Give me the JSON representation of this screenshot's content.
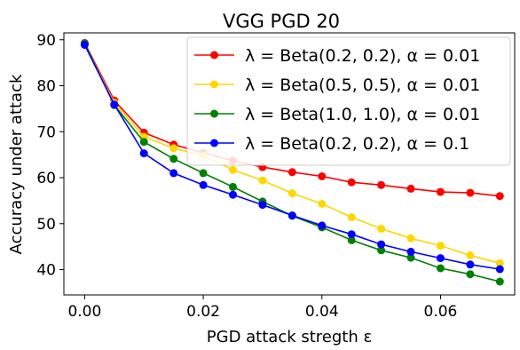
{
  "chart_data": {
    "type": "line",
    "title": "VGG PGD 20",
    "xlabel": "PGD attack stregth ε",
    "ylabel": "Accuracy under attack",
    "xlim": [
      -0.0035,
      0.0725
    ],
    "ylim": [
      34.5,
      91.5
    ],
    "xticks": [
      0.0,
      0.02,
      0.04,
      0.06
    ],
    "xtick_labels": [
      "0.00",
      "0.02",
      "0.04",
      "0.06"
    ],
    "yticks": [
      40,
      50,
      60,
      70,
      80,
      90
    ],
    "ytick_labels": [
      "40",
      "50",
      "60",
      "70",
      "80",
      "90"
    ],
    "grid": false,
    "legend_position": "top-right",
    "x": [
      0.0,
      0.005,
      0.01,
      0.015,
      0.02,
      0.025,
      0.03,
      0.035,
      0.04,
      0.045,
      0.05,
      0.055,
      0.06,
      0.065,
      0.07
    ],
    "series": [
      {
        "name": "λ = Beta(0.2, 0.2), α = 0.01",
        "color": "#ff0000",
        "values": [
          89.3,
          76.8,
          69.8,
          67.2,
          65.4,
          63.7,
          62.3,
          61.2,
          60.3,
          59.0,
          58.4,
          57.6,
          56.9,
          56.7,
          56.0
        ]
      },
      {
        "name": "λ = Beta(0.5, 0.5), α = 0.01",
        "color": "#ffd700",
        "values": [
          89.1,
          76.3,
          68.9,
          66.4,
          64.8,
          61.7,
          59.4,
          56.6,
          54.3,
          51.4,
          48.9,
          46.8,
          45.2,
          43.1,
          41.4
        ]
      },
      {
        "name": "λ = Beta(1.0, 1.0), α = 0.01",
        "color": "#008000",
        "values": [
          89.2,
          75.8,
          67.8,
          64.1,
          61.0,
          58.0,
          54.8,
          51.7,
          49.2,
          46.4,
          44.2,
          42.6,
          40.3,
          39.0,
          37.4
        ]
      },
      {
        "name": "λ = Beta(0.2, 0.2), α = 0.1",
        "color": "#0000ff",
        "values": [
          88.9,
          75.9,
          65.3,
          61.0,
          58.4,
          56.3,
          54.1,
          51.8,
          49.6,
          47.7,
          45.5,
          43.9,
          42.5,
          41.1,
          40.1
        ]
      }
    ]
  }
}
